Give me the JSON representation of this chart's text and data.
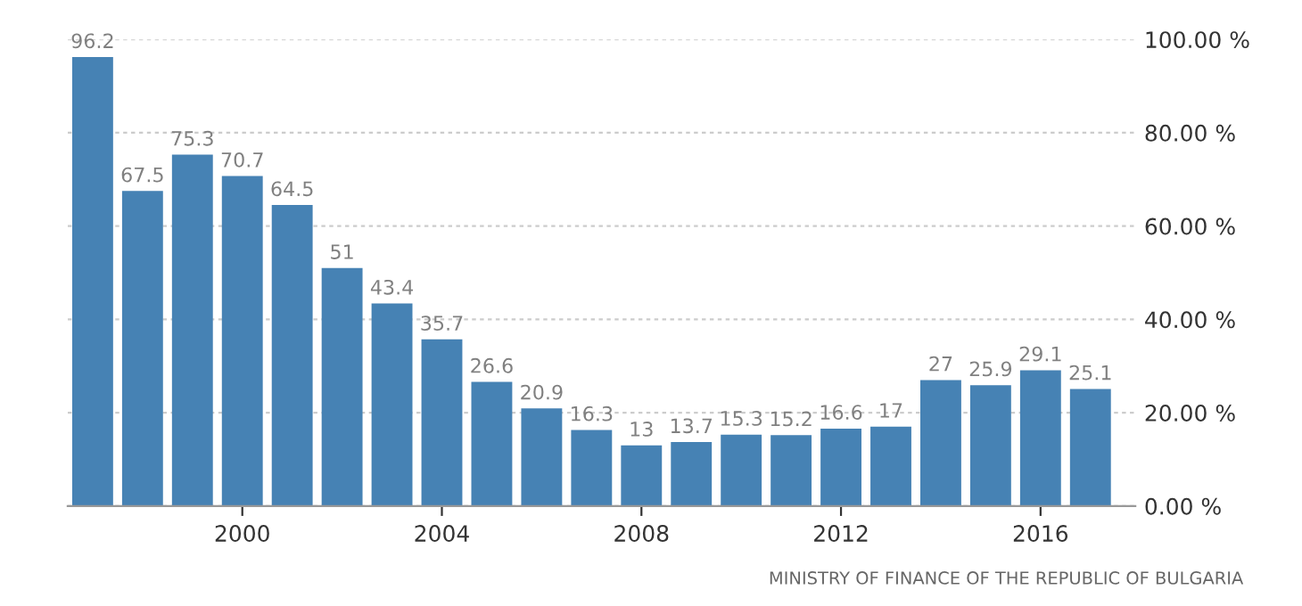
{
  "chart_data": {
    "type": "bar",
    "x": [
      1997,
      1998,
      1999,
      2000,
      2001,
      2002,
      2003,
      2004,
      2005,
      2006,
      2007,
      2008,
      2009,
      2010,
      2011,
      2012,
      2013,
      2014,
      2015,
      2016,
      2017
    ],
    "values": [
      96.2,
      67.5,
      75.3,
      70.7,
      64.5,
      51,
      43.4,
      35.7,
      26.6,
      20.9,
      16.3,
      13,
      13.7,
      15.3,
      15.2,
      16.6,
      17,
      27,
      25.9,
      29.1,
      25.1
    ],
    "color": "#4682b4",
    "data_labels": true,
    "xlim": [
      1996.5,
      2017.9
    ],
    "xticks": [
      2000,
      2004,
      2008,
      2012,
      2016
    ],
    "ylim": [
      0,
      100
    ],
    "yticks": [
      {
        "value": 0,
        "label": "0.00 %"
      },
      {
        "value": 20,
        "label": "20.00 %"
      },
      {
        "value": 40,
        "label": "40.00 %"
      },
      {
        "value": 60,
        "label": "60.00 %"
      },
      {
        "value": 80,
        "label": "80.00 %"
      },
      {
        "value": 100,
        "label": "100.00 %"
      }
    ],
    "grid": "y",
    "annotations": [
      "MINISTRY OF FINANCE OF THE REPUBLIC OF BULGARIA"
    ]
  }
}
